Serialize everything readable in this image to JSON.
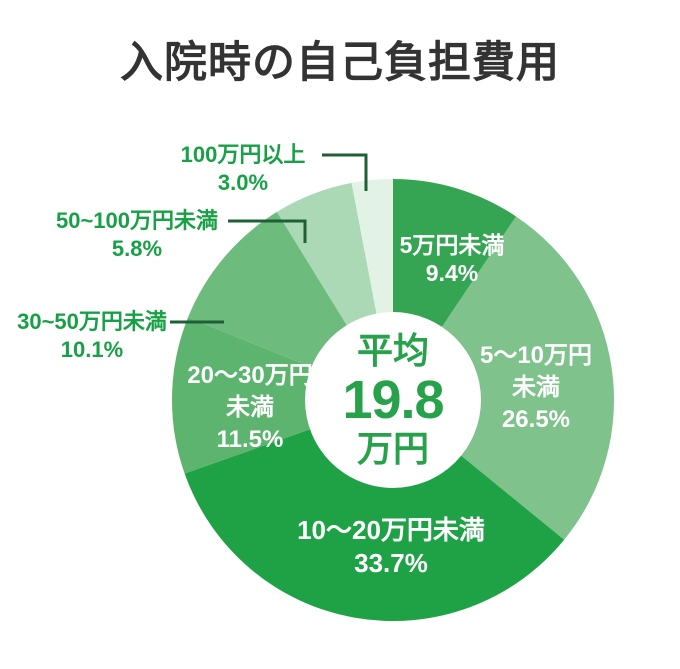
{
  "title": "入院時の自己負担費用",
  "center_label": {
    "line1": "平均",
    "line2": "19.8",
    "line3": "万円"
  },
  "colors": {
    "background": "#ffffff",
    "title_text": "#333333",
    "outside_label_text": "#17a045",
    "leader_line": "#1e5f35",
    "center_text": "#27a24b",
    "inside_label_text": "#ffffff"
  },
  "chart_data": {
    "type": "pie",
    "subtype": "donut",
    "title": "入院時の自己負担費用",
    "center_annotation": "平均19.8万円",
    "average_man_yen": 19.8,
    "value_unit": "%",
    "start_angle_deg": 0,
    "direction": "clockwise",
    "segments": [
      {
        "label": "5万円未満",
        "value": 9.4,
        "color": "#35a553",
        "label_placement": "inside",
        "label_lines": [
          "5万円未満",
          "9.4%"
        ]
      },
      {
        "label": "5〜10万円未満",
        "value": 26.5,
        "color": "#7fc28c",
        "label_placement": "inside",
        "label_lines": [
          "5〜10万円",
          "未満",
          "26.5%"
        ]
      },
      {
        "label": "10〜20万円未満",
        "value": 33.7,
        "color": "#1ea245",
        "label_placement": "inside",
        "label_lines": [
          "10〜20万円未満",
          "33.7%"
        ]
      },
      {
        "label": "20〜30万円未満",
        "value": 11.5,
        "color": "#5cb46e",
        "label_placement": "inside",
        "label_lines": [
          "20〜30万円",
          "未満",
          "11.5%"
        ]
      },
      {
        "label": "30~50万円未満",
        "value": 10.1,
        "color": "#6ebc7d",
        "label_placement": "outside",
        "label_lines": [
          "30~50万円未満",
          "10.1%"
        ]
      },
      {
        "label": "50~100万円未満",
        "value": 5.8,
        "color": "#abd8b5",
        "label_placement": "outside",
        "label_lines": [
          "50~100万円未満",
          "5.8%"
        ]
      },
      {
        "label": "100万円以上",
        "value": 3.0,
        "color": "#e2f3e6",
        "label_placement": "outside",
        "label_lines": [
          "100万円以上",
          "3.0%"
        ]
      }
    ]
  }
}
